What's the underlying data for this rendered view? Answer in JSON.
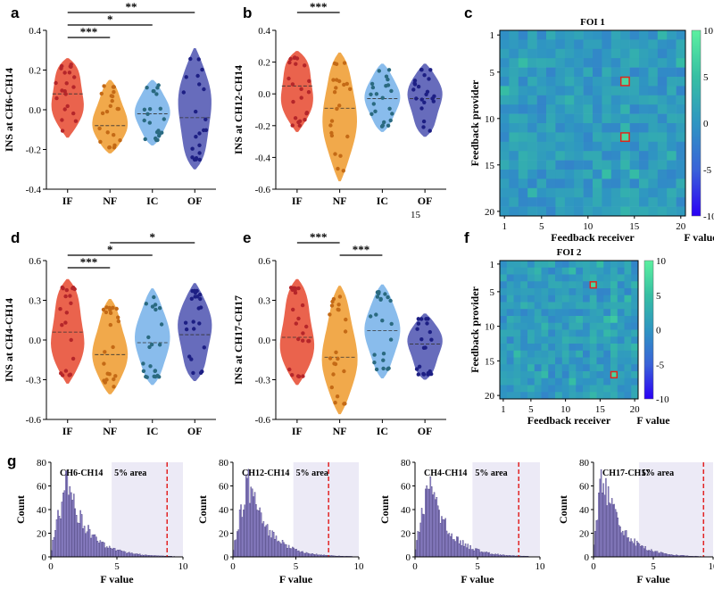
{
  "figure": {
    "panels": [
      "a",
      "b",
      "c",
      "d",
      "e",
      "f",
      "g"
    ],
    "stray_text": "15"
  },
  "chart_data": [
    {
      "id": "a",
      "type": "violin",
      "categories": [
        "IF",
        "NF",
        "IC",
        "OF"
      ],
      "ylabel": "INS at CH6-CH14",
      "ylim": [
        -0.4,
        0.4
      ],
      "yticks": [
        "0.4",
        "0.2",
        "0.0",
        "-0.2",
        "-0.4"
      ],
      "colors": [
        "#e8563e",
        "#f0a23c",
        "#7fb6ea",
        "#5a5fb6"
      ],
      "dot_colors": [
        "#b5262a",
        "#c46a16",
        "#2a6a80",
        "#1d1f84"
      ],
      "medians": [
        0.08,
        -0.08,
        -0.02,
        -0.04
      ],
      "ranges": [
        [
          -0.14,
          0.26
        ],
        [
          -0.22,
          0.15
        ],
        [
          -0.18,
          0.15
        ],
        [
          -0.3,
          0.31
        ]
      ],
      "brackets": [
        {
          "from": 0,
          "to": 3,
          "label": "**"
        },
        {
          "from": 0,
          "to": 2,
          "label": "*"
        },
        {
          "from": 0,
          "to": 1,
          "label": "***"
        }
      ]
    },
    {
      "id": "b",
      "type": "violin",
      "categories": [
        "IF",
        "NF",
        "IC",
        "OF"
      ],
      "ylabel": "INS at CH12-CH14",
      "ylim": [
        -0.6,
        0.4
      ],
      "yticks": [
        "0.4",
        "0.2",
        "0.0",
        "-0.2",
        "-0.4",
        "-0.6"
      ],
      "colors": [
        "#e8563e",
        "#f0a23c",
        "#7fb6ea",
        "#5a5fb6"
      ],
      "dot_colors": [
        "#b5262a",
        "#c46a16",
        "#2a6a80",
        "#1d1f84"
      ],
      "medians": [
        0.05,
        -0.09,
        -0.03,
        -0.03
      ],
      "ranges": [
        [
          -0.24,
          0.27
        ],
        [
          -0.55,
          0.26
        ],
        [
          -0.24,
          0.19
        ],
        [
          -0.27,
          0.19
        ]
      ],
      "brackets": [
        {
          "from": 0,
          "to": 1,
          "label": "***"
        }
      ]
    },
    {
      "id": "c",
      "type": "heatmap",
      "title": "FOI 1",
      "xlabel": "Feedback receiver",
      "ylabel": "Feedback provider",
      "xticks": [
        "1",
        "5",
        "10",
        "15",
        "20"
      ],
      "yticks": [
        "1",
        "5",
        "10",
        "15",
        "20"
      ],
      "grid_size": 20,
      "colorbar_label": "F value",
      "colorbar_ticks": [
        "10",
        "5",
        "0",
        "-5",
        "-10"
      ],
      "vmin": -10,
      "vmax": 10,
      "highlight_cells": [
        [
          14,
          6
        ],
        [
          14,
          12
        ]
      ]
    },
    {
      "id": "d",
      "type": "violin",
      "categories": [
        "IF",
        "NF",
        "IC",
        "OF"
      ],
      "ylabel": "INS at CH4-CH14",
      "ylim": [
        -0.6,
        0.6
      ],
      "yticks": [
        "0.6",
        "0.3",
        "0.0",
        "-0.3",
        "-0.6"
      ],
      "colors": [
        "#e8563e",
        "#f0a23c",
        "#7fb6ea",
        "#5a5fb6"
      ],
      "dot_colors": [
        "#b5262a",
        "#c46a16",
        "#2a6a80",
        "#1d1f84"
      ],
      "medians": [
        0.06,
        -0.11,
        -0.02,
        0.04
      ],
      "ranges": [
        [
          -0.33,
          0.46
        ],
        [
          -0.41,
          0.31
        ],
        [
          -0.34,
          0.39
        ],
        [
          -0.31,
          0.43
        ]
      ],
      "brackets": [
        {
          "from": 1,
          "to": 3,
          "label": "*"
        },
        {
          "from": 0,
          "to": 2,
          "label": "*"
        },
        {
          "from": 0,
          "to": 1,
          "label": "***"
        }
      ]
    },
    {
      "id": "e",
      "type": "violin",
      "categories": [
        "IF",
        "NF",
        "IC",
        "OF"
      ],
      "ylabel": "INS at CH17-CH17",
      "ylim": [
        -0.6,
        0.6
      ],
      "yticks": [
        "0.6",
        "0.3",
        "0.0",
        "-0.3",
        "-0.6"
      ],
      "colors": [
        "#e8563e",
        "#f0a23c",
        "#7fb6ea",
        "#5a5fb6"
      ],
      "dot_colors": [
        "#b5262a",
        "#c46a16",
        "#2a6a80",
        "#1d1f84"
      ],
      "medians": [
        0.02,
        -0.13,
        0.07,
        -0.03
      ],
      "ranges": [
        [
          -0.34,
          0.46
        ],
        [
          -0.56,
          0.41
        ],
        [
          -0.29,
          0.42
        ],
        [
          -0.3,
          0.2
        ]
      ],
      "brackets": [
        {
          "from": 0,
          "to": 1,
          "label": "***"
        },
        {
          "from": 1,
          "to": 2,
          "label": "***"
        }
      ]
    },
    {
      "id": "f",
      "type": "heatmap",
      "title": "FOI 2",
      "xlabel": "Feedback receiver",
      "ylabel": "Feedback provider",
      "xticks": [
        "1",
        "5",
        "10",
        "15",
        "20"
      ],
      "yticks": [
        "1",
        "5",
        "10",
        "15",
        "20"
      ],
      "grid_size": 20,
      "colorbar_label": "F value",
      "colorbar_ticks": [
        "10",
        "5",
        "0",
        "-5",
        "-10"
      ],
      "vmin": -10,
      "vmax": 10,
      "highlight_cells": [
        [
          14,
          4
        ],
        [
          17,
          17
        ]
      ]
    },
    {
      "id": "g1",
      "type": "histogram",
      "title": "CH6-CH14",
      "area_label": "5% area",
      "xlabel": "F value",
      "ylabel": "Count",
      "xlim": [
        0,
        10
      ],
      "ylim": [
        0,
        80
      ],
      "xticks": [
        "0",
        "5",
        "10"
      ],
      "yticks": [
        "80",
        "60",
        "40",
        "20",
        "0"
      ],
      "shade_from": 4.6,
      "threshold": 8.8,
      "peak_x": 1.2,
      "peak_count": 65
    },
    {
      "id": "g2",
      "type": "histogram",
      "title": "CH12-CH14",
      "area_label": "5% area",
      "xlabel": "F value",
      "ylabel": "Count",
      "xlim": [
        0,
        10
      ],
      "ylim": [
        0,
        80
      ],
      "xticks": [
        "0",
        "5",
        "10"
      ],
      "yticks": [
        "80",
        "60",
        "40",
        "20",
        "0"
      ],
      "shade_from": 4.8,
      "threshold": 7.6,
      "peak_x": 1.2,
      "peak_count": 67
    },
    {
      "id": "g3",
      "type": "histogram",
      "title": "CH4-CH14",
      "area_label": "5% area",
      "xlabel": "F value",
      "ylabel": "Count",
      "xlim": [
        0,
        10
      ],
      "ylim": [
        0,
        80
      ],
      "xticks": [
        "0",
        "5",
        "10"
      ],
      "yticks": [
        "80",
        "60",
        "40",
        "20",
        "0"
      ],
      "shade_from": 4.6,
      "threshold": 8.3,
      "peak_x": 1.1,
      "peak_count": 66
    },
    {
      "id": "g4",
      "type": "histogram",
      "title": "CH17-CH17",
      "area_label": "5% area",
      "xlabel": "F value",
      "ylabel": "Count",
      "xlim": [
        0,
        10
      ],
      "ylim": [
        0,
        80
      ],
      "xticks": [
        "0",
        "5",
        "10"
      ],
      "yticks": [
        "80",
        "60",
        "40",
        "20",
        "0"
      ],
      "shade_from": 3.8,
      "threshold": 9.2,
      "peak_x": 0.7,
      "peak_count": 75
    }
  ]
}
